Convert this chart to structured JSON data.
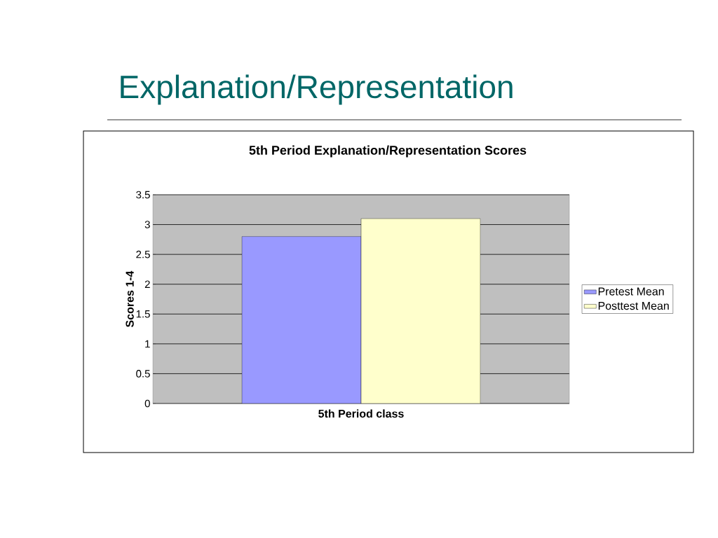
{
  "chart_data": {
    "type": "bar",
    "title": "Explanation/Representation",
    "subtitle": "5th Period Explanation/Representation Scores",
    "xlabel": "5th Period class",
    "ylabel": "Scores 1-4",
    "categories": [
      null
    ],
    "series": [
      {
        "name": "Pretest Mean",
        "color": "#9999ff",
        "values": [
          2.8
        ]
      },
      {
        "name": "Posttest Mean",
        "color": "#ffffcc",
        "values": [
          3.1
        ]
      }
    ],
    "ylim": [
      0,
      3.5
    ],
    "yticks": [
      0,
      0.5,
      1,
      1.5,
      2,
      2.5,
      3,
      3.5
    ],
    "grid": "y",
    "legend": "right"
  }
}
